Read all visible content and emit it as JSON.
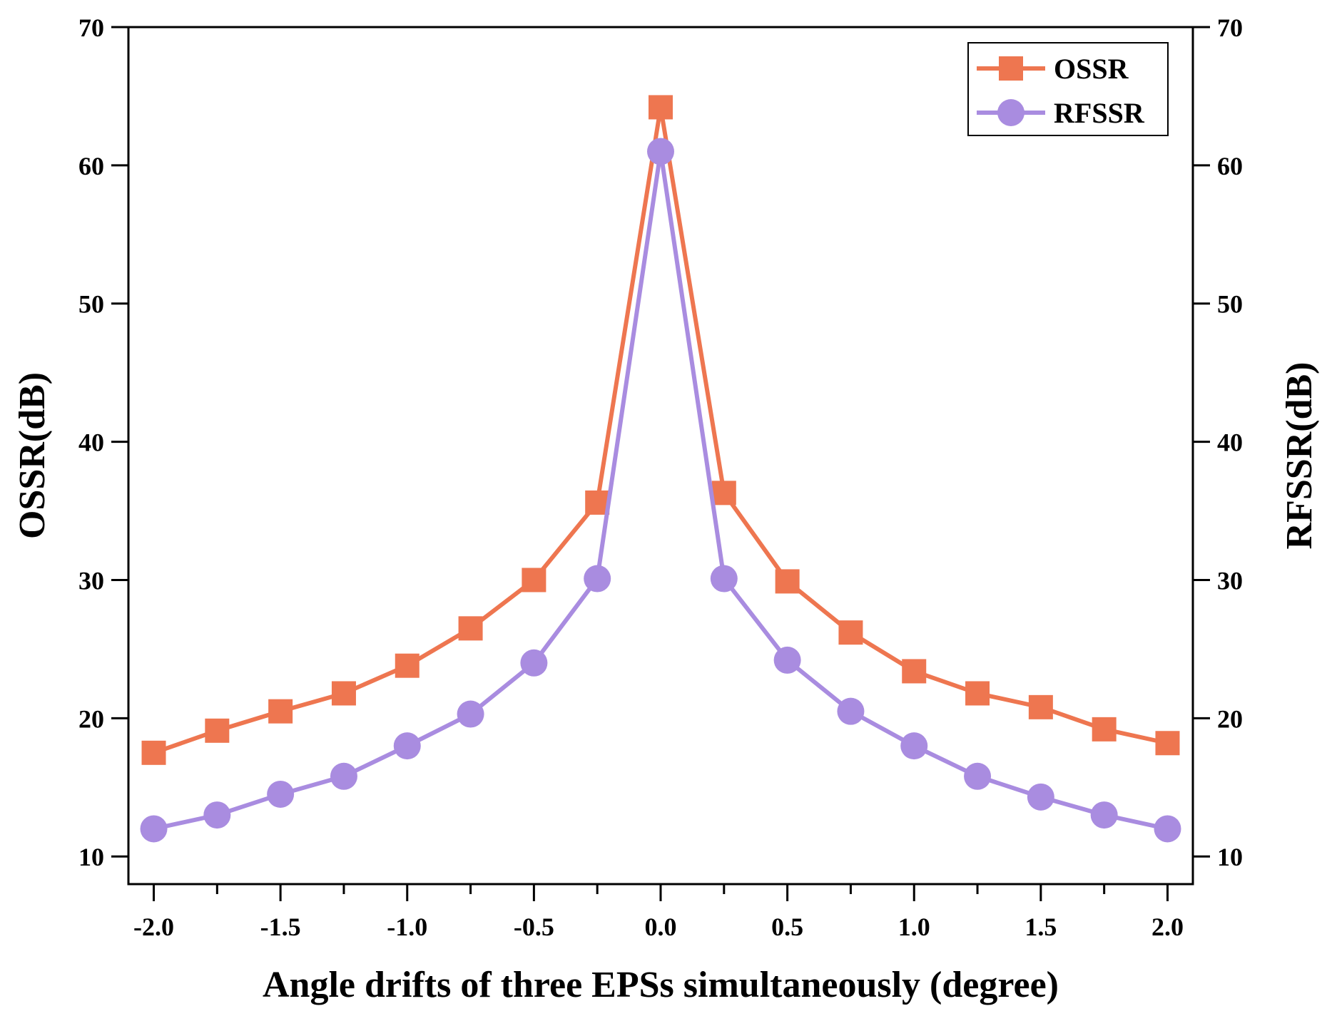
{
  "chart_data": {
    "type": "line",
    "title": "",
    "xlabel": "Angle drifts of three EPSs simultaneously (degree)",
    "ylabel_left": "OSSR(dB)",
    "ylabel_right": "RFSSR(dB)",
    "xlim": [
      -2.1,
      2.1
    ],
    "ylim": [
      8,
      70
    ],
    "x_ticks": [
      -2.0,
      -1.5,
      -1.0,
      -0.5,
      0.0,
      0.5,
      1.0,
      1.5,
      2.0
    ],
    "x_tick_labels": [
      "-2.0",
      "-1.5",
      "-1.0",
      "-0.5",
      "0.0",
      "0.5",
      "1.0",
      "1.5",
      "2.0"
    ],
    "y_ticks": [
      10,
      20,
      30,
      40,
      50,
      60,
      70
    ],
    "y_tick_labels": [
      "10",
      "20",
      "30",
      "40",
      "50",
      "60",
      "70"
    ],
    "legend_position": "top-right",
    "grid": false,
    "x": [
      -2.0,
      -1.75,
      -1.5,
      -1.25,
      -1.0,
      -0.75,
      -0.5,
      -0.25,
      0.0,
      0.25,
      0.5,
      0.75,
      1.0,
      1.25,
      1.5,
      1.75,
      2.0
    ],
    "series": [
      {
        "name": "OSSR",
        "marker": "square",
        "color": "#EE7650",
        "values": [
          17.5,
          19.1,
          20.5,
          21.8,
          23.8,
          26.5,
          30.0,
          35.6,
          64.2,
          36.3,
          29.9,
          26.2,
          23.4,
          21.8,
          20.8,
          19.2,
          18.2
        ]
      },
      {
        "name": "RFSSR",
        "marker": "circle",
        "color": "#A98CE0",
        "values": [
          12.0,
          13.0,
          14.5,
          15.8,
          18.0,
          20.3,
          24.0,
          30.1,
          61.0,
          30.1,
          24.2,
          20.5,
          18.0,
          15.8,
          14.3,
          13.0,
          12.0
        ]
      }
    ]
  }
}
